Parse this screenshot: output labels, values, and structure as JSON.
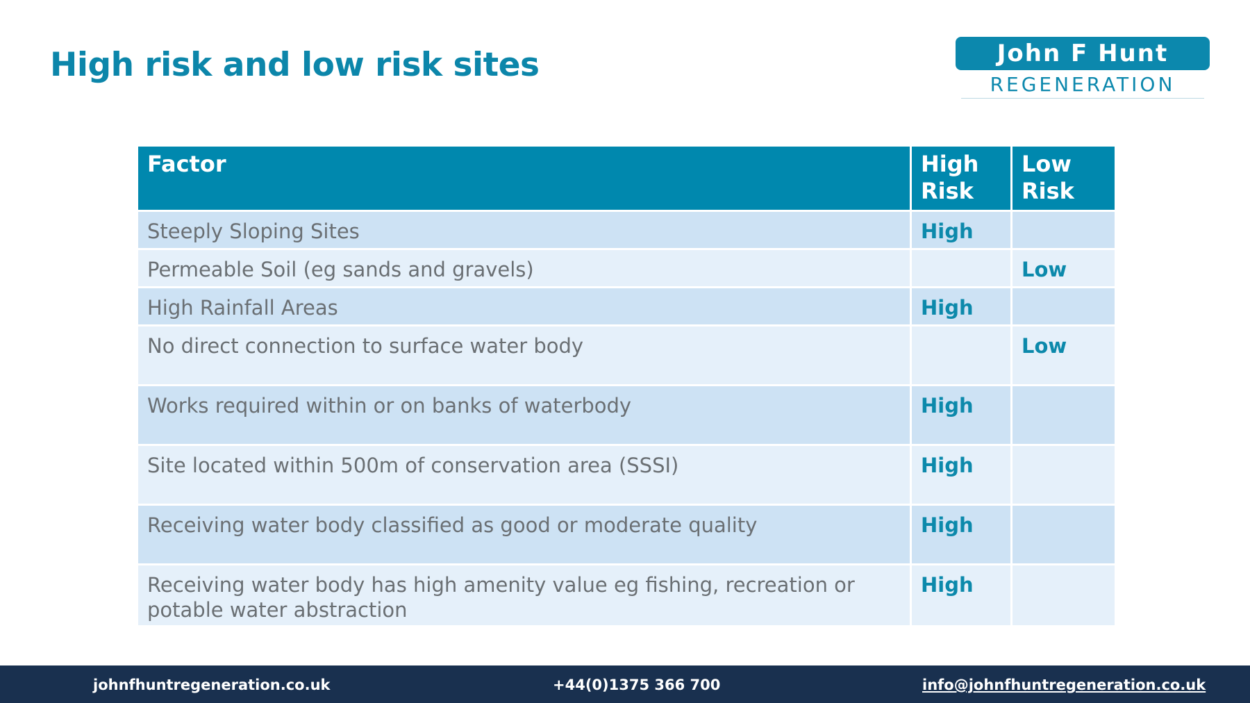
{
  "title": "High risk and low risk sites",
  "logo": {
    "line1": "John F Hunt",
    "line2": "REGENERATION",
    "accent_color": "#0c88ad"
  },
  "table": {
    "headers": {
      "factor": "Factor",
      "high": "High Risk",
      "low": "Low Risk"
    },
    "header_color": "#0088ae",
    "rows": [
      {
        "factor": "Steeply Sloping Sites",
        "high": "High",
        "low": ""
      },
      {
        "factor": "Permeable Soil (eg sands and gravels)",
        "high": "",
        "low": "Low"
      },
      {
        "factor": "High Rainfall Areas",
        "high": "High",
        "low": ""
      },
      {
        "factor": "No direct connection to surface water body",
        "high": "",
        "low": "Low"
      },
      {
        "factor": "Works required within or on banks of waterbody",
        "high": "High",
        "low": ""
      },
      {
        "factor": "Site located within 500m of conservation area (SSSI)",
        "high": "High",
        "low": ""
      },
      {
        "factor": "Receiving water body classified as good or moderate quality",
        "high": "High",
        "low": ""
      },
      {
        "factor": "Receiving water body has high amenity value eg fishing, recreation or potable water abstraction",
        "high": "High",
        "low": ""
      }
    ]
  },
  "footer": {
    "website": "johnfhuntregeneration.co.uk",
    "phone": "+44(0)1375 366 700",
    "email": "info@johnfhuntregeneration.co.uk",
    "background_color": "#19304f"
  }
}
